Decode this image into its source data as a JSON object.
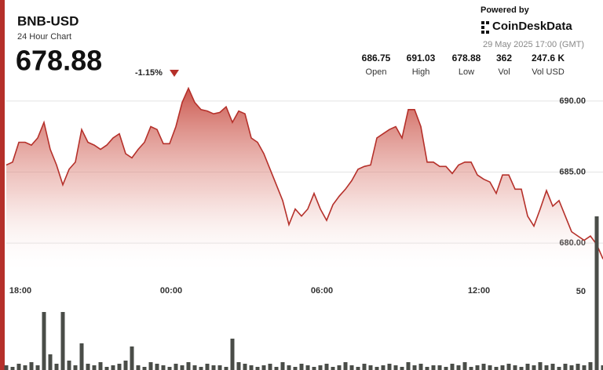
{
  "header": {
    "powered_by": "Powered by",
    "brand": "CoinDeskData",
    "timestamp": "29 May 2025 17:00 (GMT)",
    "price": "678.88",
    "change": "-1.15%",
    "stats": [
      {
        "value": "686.75",
        "label": "Open"
      },
      {
        "value": "691.03",
        "label": "High"
      },
      {
        "value": "678.88",
        "label": "Low"
      },
      {
        "value": "362",
        "label": "Vol"
      },
      {
        "value": "247.6 K",
        "label": "Vol USD"
      }
    ]
  },
  "chart_data": {
    "type": "line",
    "title": "BNB-USD",
    "subtitle": "24 Hour Chart",
    "categories": [
      null,
      null,
      "18:00",
      null,
      null,
      null,
      null,
      null,
      null,
      null,
      null,
      null,
      null,
      null,
      null,
      null,
      null,
      null,
      null,
      null,
      null,
      null,
      null,
      null,
      null,
      null,
      "00:00",
      null,
      null,
      null,
      null,
      null,
      null,
      null,
      null,
      null,
      null,
      null,
      null,
      null,
      null,
      null,
      null,
      null,
      null,
      null,
      null,
      null,
      null,
      null,
      "06:00",
      null,
      null,
      null,
      null,
      null,
      null,
      null,
      null,
      null,
      null,
      null,
      null,
      null,
      null,
      null,
      null,
      null,
      null,
      null,
      null,
      null,
      null,
      null,
      null,
      "12:00",
      null,
      null,
      null,
      null,
      null,
      null,
      null,
      null,
      null,
      null,
      null,
      null,
      null,
      null,
      null,
      null,
      null,
      null,
      null,
      null
    ],
    "series": [
      {
        "name": "BNB-USD",
        "color": "#b5302a",
        "values": [
          685.5,
          685.7,
          687.1,
          687.1,
          686.9,
          687.4,
          688.5,
          686.6,
          685.5,
          684.1,
          685.2,
          685.7,
          688.0,
          687.1,
          686.9,
          686.6,
          686.9,
          687.4,
          687.7,
          686.3,
          686.0,
          686.6,
          687.1,
          688.2,
          688.0,
          687.0,
          687.0,
          688.2,
          689.9,
          690.9,
          689.9,
          689.4,
          689.3,
          689.1,
          689.2,
          689.6,
          688.5,
          689.3,
          689.1,
          687.4,
          687.1,
          686.3,
          685.2,
          684.1,
          683.0,
          681.3,
          682.4,
          681.9,
          682.4,
          683.5,
          682.4,
          681.6,
          682.7,
          683.3,
          683.8,
          684.4,
          685.2,
          685.4,
          685.5,
          687.4,
          687.7,
          688.0,
          688.2,
          687.4,
          689.4,
          689.4,
          688.2,
          685.7,
          685.7,
          685.4,
          685.4,
          684.9,
          685.5,
          685.7,
          685.7,
          684.8,
          684.5,
          684.3,
          683.5,
          684.8,
          684.8,
          683.8,
          683.8,
          681.9,
          681.2,
          682.4,
          683.7,
          682.6,
          683.0,
          681.9,
          680.8,
          680.5,
          680.2,
          680.5,
          679.9,
          678.88
        ]
      }
    ],
    "ylim": [
      692.7,
      677.8
    ],
    "yticks": [
      {
        "value": 690,
        "label": "690.00"
      },
      {
        "value": 685,
        "label": "685.00"
      },
      {
        "value": 680,
        "label": "680.00"
      }
    ],
    "grid": true,
    "volume": {
      "color": "#4a4d48",
      "ylim": [
        0,
        100
      ],
      "yticks": [
        50
      ],
      "values": [
        3,
        2,
        4,
        3,
        5,
        3,
        37,
        10,
        4,
        37,
        6,
        3,
        17,
        4,
        3,
        5,
        2,
        3,
        4,
        6,
        15,
        3,
        2,
        5,
        4,
        3,
        2,
        4,
        3,
        5,
        3,
        2,
        4,
        3,
        3,
        2,
        20,
        5,
        4,
        3,
        2,
        3,
        4,
        2,
        5,
        3,
        2,
        4,
        3,
        2,
        3,
        4,
        2,
        3,
        5,
        3,
        2,
        4,
        3,
        2,
        3,
        4,
        3,
        2,
        5,
        3,
        4,
        2,
        3,
        3,
        2,
        4,
        3,
        5,
        2,
        3,
        4,
        3,
        2,
        3,
        4,
        3,
        2,
        4,
        3,
        5,
        3,
        4,
        2,
        4,
        3,
        4,
        3,
        5,
        98,
        3
      ]
    }
  }
}
